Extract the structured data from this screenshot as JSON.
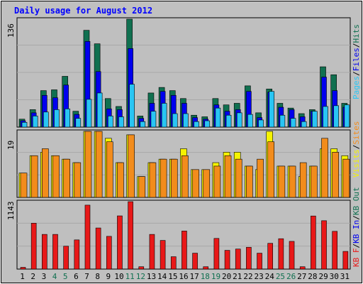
{
  "title": "Daily usage for August 2012",
  "colors": {
    "background": "#c0c0c0",
    "panel": "#bfbfbf",
    "grid": "#a8a8a8",
    "hits": "#107050",
    "files": "#0000ee",
    "pages": "#29c5f4",
    "visits": "#f5f300",
    "sites": "#f28c1c",
    "kbf": "#e81818",
    "weekday_label": "#000000",
    "weekend_label": "#107050",
    "title": "#0000ff"
  },
  "chart_data": [
    {
      "type": "bar",
      "panel": "hits-files-pages",
      "ylabel": "136",
      "ylim": [
        0,
        136
      ],
      "legend": [
        "Pages",
        "/",
        "Files",
        "/",
        "Hits"
      ],
      "categories": [
        "1",
        "2",
        "3",
        "4",
        "5",
        "6",
        "7",
        "8",
        "9",
        "10",
        "11",
        "12",
        "13",
        "14",
        "15",
        "16",
        "17",
        "18",
        "19",
        "20",
        "21",
        "22",
        "23",
        "24",
        "25",
        "26",
        "27",
        "28",
        "29",
        "30",
        "31"
      ],
      "series": [
        {
          "name": "Hits",
          "values": [
            10,
            22,
            46,
            47,
            64,
            20,
            122,
            105,
            36,
            26,
            136,
            14,
            43,
            50,
            46,
            36,
            15,
            13,
            36,
            28,
            30,
            52,
            18,
            48,
            30,
            24,
            17,
            22,
            76,
            66,
            30
          ]
        },
        {
          "name": "Files",
          "values": [
            8,
            18,
            40,
            37,
            53,
            16,
            108,
            70,
            23,
            22,
            99,
            11,
            30,
            45,
            40,
            30,
            12,
            10,
            28,
            20,
            22,
            45,
            12,
            44,
            25,
            22,
            13,
            20,
            63,
            46,
            25
          ]
        },
        {
          "name": "Pages",
          "values": [
            6,
            14,
            19,
            22,
            23,
            11,
            35,
            43,
            14,
            13,
            54,
            7,
            20,
            30,
            17,
            17,
            7,
            8,
            24,
            15,
            18,
            16,
            9,
            45,
            15,
            11,
            7,
            20,
            26,
            27,
            28
          ]
        }
      ]
    },
    {
      "type": "bar",
      "panel": "visits-sites",
      "ylabel": "19",
      "ylim": [
        0,
        19
      ],
      "legend": [
        "Visits",
        "/",
        "Sites"
      ],
      "categories": [
        "1",
        "2",
        "3",
        "4",
        "5",
        "6",
        "7",
        "8",
        "9",
        "10",
        "11",
        "12",
        "13",
        "14",
        "15",
        "16",
        "17",
        "18",
        "19",
        "20",
        "21",
        "22",
        "23",
        "24",
        "25",
        "26",
        "27",
        "28",
        "29",
        "30",
        "31"
      ],
      "series": [
        {
          "name": "Visits",
          "values": [
            7,
            12,
            13,
            12,
            11,
            10,
            19,
            19,
            17,
            10,
            18,
            6,
            10,
            11,
            11,
            14,
            8,
            8,
            10,
            13,
            13,
            9,
            8,
            19,
            9,
            9,
            6,
            9,
            14,
            14,
            12
          ]
        },
        {
          "name": "Sites",
          "values": [
            7,
            12,
            14,
            12,
            11,
            10,
            19,
            19,
            16,
            10,
            18,
            6,
            10,
            11,
            11,
            12,
            8,
            8,
            9,
            12,
            11,
            9,
            11,
            16,
            9,
            9,
            10,
            9,
            17,
            13,
            11
          ]
        }
      ]
    },
    {
      "type": "bar",
      "panel": "kbf",
      "ylabel": "1143",
      "ylim": [
        0,
        1143
      ],
      "legend": [
        "KB F",
        "/",
        "KB In",
        "/",
        "KB Out"
      ],
      "categories": [
        "1",
        "2",
        "3",
        "4",
        "5",
        "6",
        "7",
        "8",
        "9",
        "10",
        "11",
        "12",
        "13",
        "14",
        "15",
        "16",
        "17",
        "18",
        "19",
        "20",
        "21",
        "22",
        "23",
        "24",
        "25",
        "26",
        "27",
        "28",
        "29",
        "30",
        "31"
      ],
      "series": [
        {
          "name": "KB F",
          "values": [
            30,
            778,
            588,
            588,
            388,
            495,
            1084,
            697,
            555,
            902,
            1143,
            40,
            588,
            486,
            210,
            645,
            270,
            40,
            520,
            318,
            340,
            370,
            270,
            437,
            515,
            470,
            40,
            900,
            820,
            640,
            300
          ]
        }
      ]
    }
  ],
  "x_label_colors": [
    "weekday",
    "weekday",
    "weekday",
    "weekend",
    "weekend",
    "weekday",
    "weekday",
    "weekday",
    "weekday",
    "weekday",
    "weekend",
    "weekend",
    "weekday",
    "weekday",
    "weekday",
    "weekday",
    "weekday",
    "weekend",
    "weekend",
    "weekday",
    "weekday",
    "weekday",
    "weekday",
    "weekday",
    "weekend",
    "weekend",
    "weekday",
    "weekday",
    "weekday",
    "weekday",
    "weekday"
  ]
}
